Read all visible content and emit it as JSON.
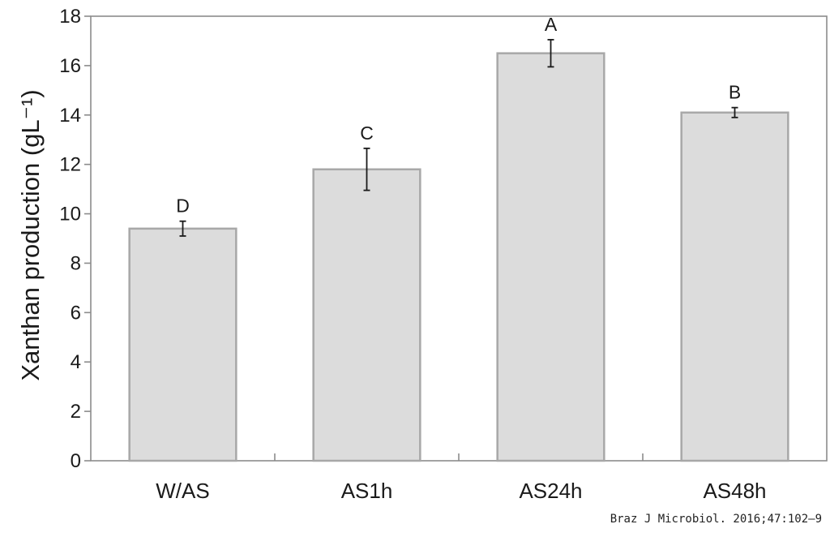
{
  "chart_data": {
    "type": "bar",
    "categories": [
      "W/AS",
      "AS1h",
      "AS24h",
      "AS48h"
    ],
    "values": [
      9.4,
      11.8,
      16.5,
      14.1
    ],
    "error": [
      0.3,
      0.85,
      0.55,
      0.2
    ],
    "significance": [
      "D",
      "C",
      "A",
      "B"
    ],
    "ylabel": "Xanthan production (gL⁻¹)",
    "xlabel": "",
    "ylim": [
      0,
      18
    ],
    "yticks": [
      0,
      2,
      4,
      6,
      8,
      10,
      12,
      14,
      16,
      18
    ],
    "grid": false,
    "legend": "none",
    "colors": {
      "bar_fill": "#dcdcdc",
      "bar_stroke": "#a8a8a8",
      "axis": "#8c8c8c",
      "errorbar": "#1a1a1a",
      "text": "#1a1a1a"
    }
  },
  "citation": "Braz J Microbiol. 2016;47:102–9"
}
